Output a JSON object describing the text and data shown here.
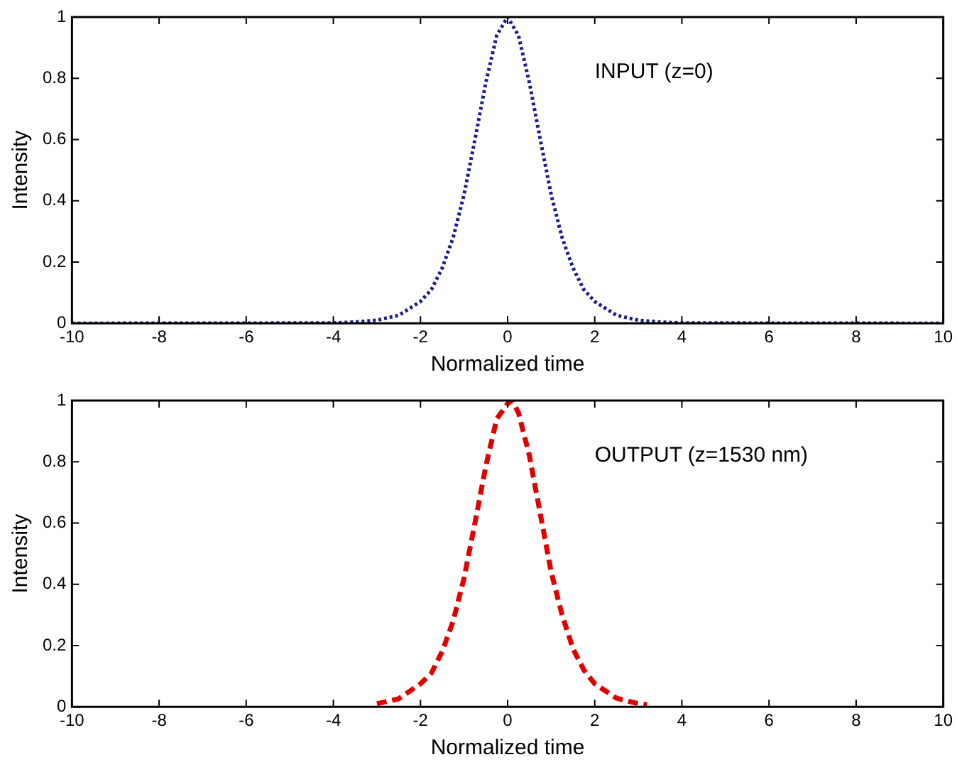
{
  "chart_data": [
    {
      "type": "line",
      "xlabel": "Normalized time",
      "ylabel": "Intensity",
      "annotations": [
        "INPUT (z=0)"
      ],
      "xlim": [
        -10,
        10
      ],
      "xticks": [
        -10,
        -8,
        -6,
        -4,
        -2,
        0,
        2,
        4,
        6,
        8,
        10
      ],
      "ylim": [
        0,
        1
      ],
      "yticks": [
        0,
        0.2,
        0.4,
        0.6,
        0.8,
        1
      ],
      "grid": false,
      "legend": false,
      "line_style": "dotted",
      "marker": "none",
      "series": [
        {
          "color": "#1c1c8a",
          "x": [
            -10,
            -4,
            -3.5,
            -3,
            -2.5,
            -2,
            -1.75,
            -1.5,
            -1.25,
            -1,
            -0.75,
            -0.5,
            -0.25,
            0,
            0.25,
            0.5,
            0.75,
            1,
            1.25,
            1.5,
            1.75,
            2,
            2.5,
            3,
            3.5,
            4,
            10
          ],
          "values": [
            0,
            0.001,
            0.004,
            0.01,
            0.026,
            0.071,
            0.11,
            0.181,
            0.28,
            0.42,
            0.6,
            0.786,
            0.94,
            1,
            0.94,
            0.786,
            0.6,
            0.42,
            0.28,
            0.181,
            0.11,
            0.071,
            0.026,
            0.01,
            0.004,
            0.001,
            0
          ]
        }
      ]
    },
    {
      "type": "line",
      "xlabel": "Normalized time",
      "ylabel": "Intensity",
      "annotations": [
        "OUTPUT (z=1530 nm)"
      ],
      "xlim": [
        -10,
        10
      ],
      "xticks": [
        -10,
        -8,
        -6,
        -4,
        -2,
        0,
        2,
        4,
        6,
        8,
        10
      ],
      "ylim": [
        0,
        1
      ],
      "yticks": [
        0,
        0.2,
        0.4,
        0.6,
        0.8,
        1
      ],
      "grid": false,
      "legend": false,
      "line_style": "dashed",
      "marker": "none",
      "series": [
        {
          "color": "#e00000",
          "x": [
            -3,
            -2.5,
            -2,
            -1.75,
            -1.5,
            -1.25,
            -1,
            -0.75,
            -0.5,
            -0.25,
            0,
            0.1,
            0.25,
            0.5,
            0.75,
            1,
            1.25,
            1.5,
            1.75,
            2,
            2.5,
            3,
            3.2
          ],
          "values": [
            0.01,
            0.026,
            0.075,
            0.11,
            0.181,
            0.28,
            0.42,
            0.6,
            0.786,
            0.94,
            0.99,
            1,
            0.96,
            0.82,
            0.63,
            0.44,
            0.3,
            0.19,
            0.12,
            0.075,
            0.028,
            0.01,
            0.007
          ]
        }
      ]
    }
  ]
}
